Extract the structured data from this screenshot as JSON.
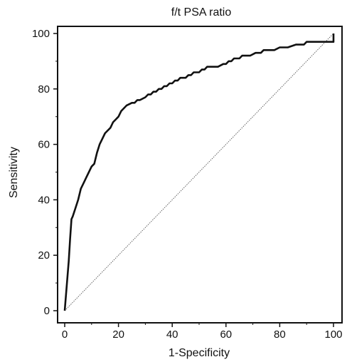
{
  "chart_data": {
    "type": "line",
    "title": "f/t PSA ratio",
    "xlabel": "1-Specificity",
    "ylabel": "Sensitivity",
    "xlim": [
      0,
      100
    ],
    "ylim": [
      0,
      100
    ],
    "x_ticks": [
      0,
      20,
      40,
      60,
      80,
      100
    ],
    "y_ticks": [
      0,
      20,
      40,
      60,
      80,
      100
    ],
    "grid": false,
    "legend": "none",
    "series": [
      {
        "x": [
          0,
          0.5,
          1,
          1.5,
          2,
          2.5,
          3,
          4,
          5,
          6,
          7,
          8,
          9,
          10,
          11,
          12,
          13,
          14,
          15,
          16,
          17,
          18,
          19,
          20,
          21,
          23,
          25,
          26,
          27,
          28,
          30,
          31,
          32,
          33,
          34,
          35,
          36,
          37,
          38,
          39,
          40,
          41,
          42,
          43,
          45,
          46,
          47,
          48,
          49,
          50,
          51,
          52,
          53,
          55,
          57,
          59,
          60,
          61,
          62,
          63,
          65,
          66,
          67,
          69,
          71,
          73,
          74,
          76,
          78,
          80,
          81,
          83,
          86,
          87,
          89,
          90,
          92,
          94,
          96,
          98,
          100,
          100,
          100
        ],
        "y": [
          0,
          6,
          12,
          18,
          26,
          33,
          34,
          37,
          40,
          44,
          46,
          48,
          50,
          52,
          53,
          57,
          60,
          62,
          64,
          65,
          66,
          68,
          69,
          70,
          72,
          74,
          75,
          75,
          76,
          76,
          77,
          78,
          78,
          79,
          79,
          80,
          80,
          81,
          81,
          82,
          82,
          83,
          83,
          84,
          84,
          85,
          85,
          86,
          86,
          86,
          87,
          87,
          88,
          88,
          88,
          89,
          89,
          90,
          90,
          91,
          91,
          92,
          92,
          92,
          93,
          93,
          94,
          94,
          94,
          95,
          95,
          95,
          96,
          96,
          96,
          97,
          97,
          97,
          97,
          97,
          97,
          99,
          100
        ],
        "color": "#111111"
      },
      {
        "x": [
          0,
          100
        ],
        "y": [
          0,
          100
        ],
        "color": "#555555",
        "style": "dotted"
      }
    ]
  }
}
